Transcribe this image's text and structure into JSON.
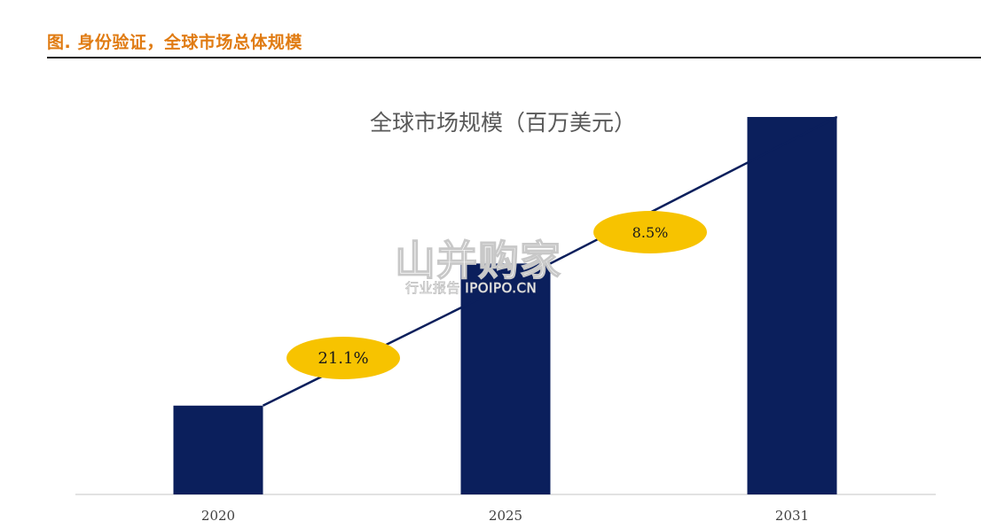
{
  "figure": {
    "caption": "图. 身份验证，全球市场总体规模"
  },
  "watermark": {
    "main": "山并购家",
    "sub": "行业报告 IPOIPO.CN"
  },
  "colors": {
    "caption": "#e07b12",
    "bar": "#0b1f5c",
    "ellipse": "#f7c300",
    "arrow": "#0b1f5c"
  },
  "chart_data": {
    "type": "bar",
    "title": "全球市场规模（百万美元）",
    "categories": [
      "2020",
      "2025",
      "2031"
    ],
    "values": [
      100,
      260,
      425
    ],
    "ylim": [
      0,
      430
    ],
    "xlabel": "",
    "ylabel": "",
    "grid": false,
    "annotations": [
      {
        "text": "21.1%",
        "from": "2020",
        "to": "2025"
      },
      {
        "text": "8.5%",
        "from": "2025",
        "to": "2031"
      }
    ]
  }
}
